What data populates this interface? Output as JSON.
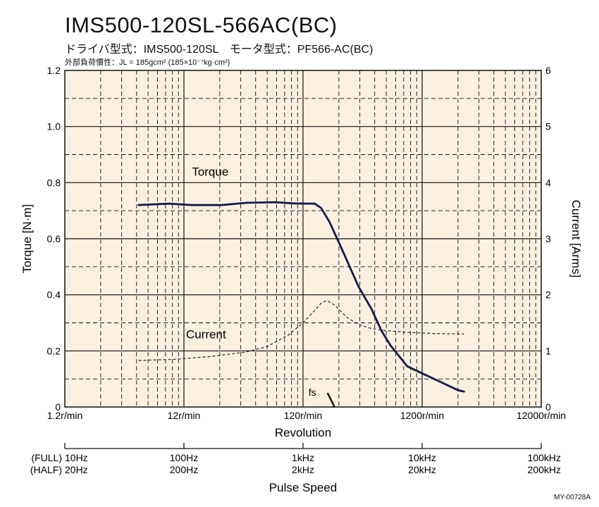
{
  "header": {
    "title": "IMS500-120SL-566AC(BC)",
    "subtitle": "ドライバ型式：IMS500-120SL　モータ型式：PF566-AC(BC)",
    "load_inertia": "外部負荷慣性：JL = 185gcm² (185×10⁻⁷kg·cm²)"
  },
  "footer_code": "MY-00728A",
  "chart_data": {
    "type": "line",
    "title": "IMS500-120SL-566AC(BC)",
    "xlabel": "Revolution",
    "x_scale": "log",
    "x_range_rpm": [
      1.2,
      12000
    ],
    "x_ticks": [
      "1.2r/min",
      "12r/min",
      "120r/min",
      "1200r/min",
      "12000r/min"
    ],
    "ylabel_left": "Torque [N·m]",
    "ylim_left": [
      0,
      1.2
    ],
    "yticks_left": [
      "0",
      "0.2",
      "0.4",
      "0.6",
      "0.8",
      "1.0",
      "1.2"
    ],
    "ylabel_right": "Current [Arms]",
    "ylim_right": [
      0,
      6
    ],
    "yticks_right": [
      "0",
      "1",
      "2",
      "3",
      "4",
      "5",
      "6"
    ],
    "grid": true,
    "series": [
      {
        "name": "Torque",
        "axis": "left",
        "style": "solid",
        "color": "#141a4a",
        "points": [
          [
            5,
            0.72
          ],
          [
            9,
            0.725
          ],
          [
            14,
            0.72
          ],
          [
            25,
            0.72
          ],
          [
            40,
            0.728
          ],
          [
            70,
            0.73
          ],
          [
            100,
            0.726
          ],
          [
            130,
            0.725
          ],
          [
            150,
            0.725
          ],
          [
            170,
            0.71
          ],
          [
            200,
            0.66
          ],
          [
            250,
            0.57
          ],
          [
            350,
            0.43
          ],
          [
            450,
            0.35
          ],
          [
            550,
            0.27
          ],
          [
            650,
            0.22
          ],
          [
            900,
            0.145
          ],
          [
            1200,
            0.12
          ],
          [
            1700,
            0.09
          ],
          [
            2400,
            0.06
          ],
          [
            2700,
            0.055
          ]
        ]
      },
      {
        "name": "Current",
        "axis": "right",
        "style": "dashed",
        "color": "#222222",
        "points": [
          [
            5,
            0.83
          ],
          [
            10,
            0.85
          ],
          [
            20,
            0.9
          ],
          [
            40,
            0.98
          ],
          [
            60,
            1.08
          ],
          [
            90,
            1.28
          ],
          [
            120,
            1.5
          ],
          [
            150,
            1.72
          ],
          [
            170,
            1.85
          ],
          [
            190,
            1.9
          ],
          [
            220,
            1.82
          ],
          [
            280,
            1.6
          ],
          [
            350,
            1.47
          ],
          [
            450,
            1.4
          ],
          [
            600,
            1.36
          ],
          [
            900,
            1.33
          ],
          [
            1500,
            1.31
          ],
          [
            2700,
            1.3
          ]
        ]
      }
    ],
    "series_labels": [
      "Torque",
      "Current"
    ],
    "annotation": "fs",
    "pulse_axis": {
      "title": "Pulse Speed",
      "full_label": "(FULL)",
      "half_label": "(HALF)",
      "full_ticks": [
        "10Hz",
        "100Hz",
        "1kHz",
        "10kHz",
        "100kHz"
      ],
      "half_ticks": [
        "20Hz",
        "200Hz",
        "2kHz",
        "20kHz",
        "200kHz"
      ]
    },
    "colors": {
      "plot_bg": "#fcf0e1",
      "grid": "#111111"
    }
  }
}
